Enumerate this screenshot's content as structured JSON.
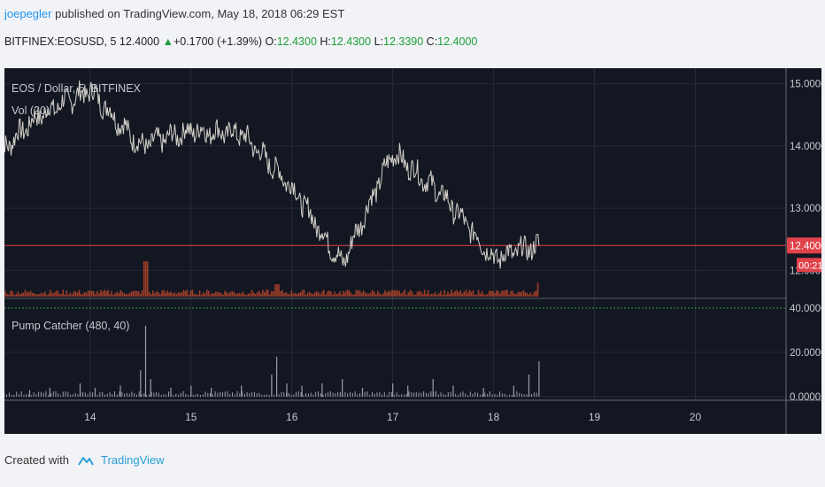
{
  "header": {
    "user": "joepegler",
    "published": "published on TradingView.com, May 18, 2018 06:29 EST",
    "symbol": "BITFINEX:EOSUSD, 5",
    "last": "12.4000",
    "change": "+0.1700 (+1.39%)",
    "o_label": "O:",
    "o_val": "12.4300",
    "h_label": "H:",
    "h_val": "12.4300",
    "l_label": "L:",
    "l_val": "12.3390",
    "c_label": "C:",
    "c_val": "12.4000"
  },
  "footer": {
    "created_with": "Created with",
    "brand": "TradingView"
  },
  "colors": {
    "bg": "#131722",
    "price_line": "#d3d0c8",
    "last_line": "#e0424a",
    "vol": "#b8452a",
    "osc": "#9a9ea7",
    "osc_level": "#2e9c42"
  },
  "chart_data": [
    {
      "type": "line",
      "title": "EOS / Dollar, 5, BITFINEX",
      "indicator_label": "Vol (20)",
      "x": [
        "13.1",
        "13.5",
        "14",
        "14.5",
        "15",
        "15.5",
        "16",
        "16.5",
        "17",
        "17.5",
        "18",
        "18.45"
      ],
      "series": [
        {
          "values": [
            13.9,
            14.5,
            14.9,
            14.0,
            14.25,
            14.2,
            13.35,
            12.1,
            13.9,
            13.2,
            12.2,
            12.4
          ]
        }
      ],
      "ylim": [
        11.55,
        15.25
      ],
      "y_ticks": [
        "15.0000",
        "14.0000",
        "13.0000",
        "12.0000"
      ],
      "y_tick_values": [
        15,
        14,
        13,
        12
      ],
      "last_price_label": "12.4000",
      "last_price_value": 12.4,
      "countdown_label": "00:21",
      "x_ticks": [
        "14",
        "15",
        "16",
        "17",
        "18",
        "19",
        "20"
      ],
      "x_tick_values": [
        14,
        15,
        16,
        17,
        18,
        19,
        20
      ],
      "xlim": [
        13.15,
        20.9
      ]
    },
    {
      "type": "bar",
      "title": "Pump Catcher (480, 40)",
      "y_ticks": [
        "40.0000",
        "20.0000",
        "0.0000"
      ],
      "y_tick_values": [
        40,
        20,
        0
      ],
      "ylim": [
        0,
        42
      ],
      "level": 40,
      "spikes": [
        {
          "x": 13.4,
          "v": 3
        },
        {
          "x": 13.6,
          "v": 4
        },
        {
          "x": 13.9,
          "v": 6
        },
        {
          "x": 14.05,
          "v": 4
        },
        {
          "x": 14.3,
          "v": 5
        },
        {
          "x": 14.5,
          "v": 12
        },
        {
          "x": 14.55,
          "v": 32
        },
        {
          "x": 14.6,
          "v": 8
        },
        {
          "x": 14.8,
          "v": 4
        },
        {
          "x": 15.0,
          "v": 5
        },
        {
          "x": 15.2,
          "v": 4
        },
        {
          "x": 15.5,
          "v": 5
        },
        {
          "x": 15.8,
          "v": 10
        },
        {
          "x": 15.85,
          "v": 18
        },
        {
          "x": 15.95,
          "v": 6
        },
        {
          "x": 16.1,
          "v": 5
        },
        {
          "x": 16.3,
          "v": 6
        },
        {
          "x": 16.5,
          "v": 8
        },
        {
          "x": 16.7,
          "v": 4
        },
        {
          "x": 17.0,
          "v": 6
        },
        {
          "x": 17.15,
          "v": 5
        },
        {
          "x": 17.4,
          "v": 8
        },
        {
          "x": 17.6,
          "v": 5
        },
        {
          "x": 17.9,
          "v": 4
        },
        {
          "x": 18.2,
          "v": 5
        },
        {
          "x": 18.35,
          "v": 10
        },
        {
          "x": 18.45,
          "v": 16
        }
      ]
    }
  ]
}
